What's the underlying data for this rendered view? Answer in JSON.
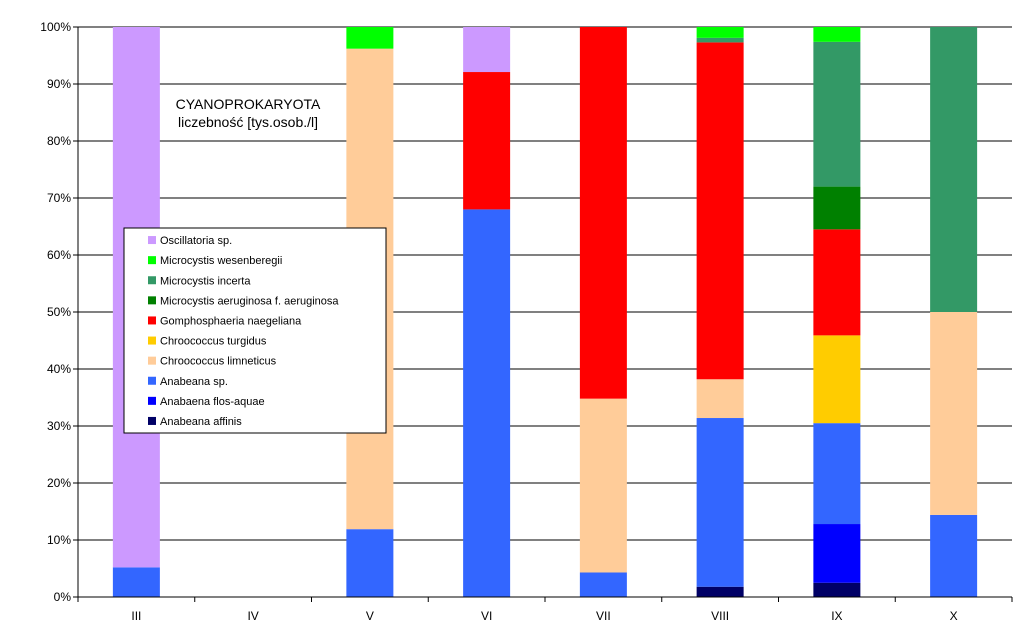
{
  "chart_data": {
    "type": "bar",
    "stacked": true,
    "percent": true,
    "title": "CYANOPROKARYOTA",
    "subtitle": "liczebność [tys.osob./l]",
    "categories": [
      "III",
      "IV",
      "V",
      "VI",
      "VII",
      "VIII",
      "IX",
      "X"
    ],
    "ylim": [
      0,
      100
    ],
    "yticks": [
      "0%",
      "10%",
      "20%",
      "30%",
      "40%",
      "50%",
      "60%",
      "70%",
      "80%",
      "90%",
      "100%"
    ],
    "grid": "horizontal",
    "legend_placement": "left-middle",
    "series": [
      {
        "name": "Anabeana affinis",
        "color": "#000066",
        "values": [
          0,
          0,
          0,
          0,
          0,
          1.8,
          2.5,
          0
        ]
      },
      {
        "name": "Anabaena flos-aquae",
        "color": "#0000FF",
        "values": [
          0,
          0,
          0,
          0,
          0,
          0,
          10.3,
          0
        ]
      },
      {
        "name": "Anabeana sp.",
        "color": "#3366FF",
        "values": [
          5.2,
          0,
          11.9,
          68,
          4.3,
          29.6,
          17.7,
          14.4
        ]
      },
      {
        "name": "Chroococcus limneticus",
        "color": "#FFCC99",
        "values": [
          0,
          0,
          84.3,
          0,
          30.5,
          6.8,
          0,
          35.6
        ]
      },
      {
        "name": "Chroococcus turgidus",
        "color": "#FFCC00",
        "values": [
          0,
          0,
          0,
          0,
          0,
          0,
          15.4,
          0
        ]
      },
      {
        "name": "Gomphosphaeria naegeliana",
        "color": "#FF0000",
        "values": [
          0,
          0,
          0,
          24.1,
          65.2,
          59.1,
          18.6,
          0
        ]
      },
      {
        "name": "Microcystis aeruginosa f. aeruginosa",
        "color": "#008000",
        "values": [
          0,
          0,
          0,
          0,
          0,
          0,
          7.5,
          0
        ]
      },
      {
        "name": "Microcystis incerta",
        "color": "#339966",
        "values": [
          0,
          0,
          0,
          0,
          0,
          0.8,
          25.4,
          50
        ]
      },
      {
        "name": "Microcystis wesenberegii",
        "color": "#00FF00",
        "values": [
          0,
          0,
          3.8,
          0,
          0,
          1.9,
          2.6,
          0
        ]
      },
      {
        "name": "Oscillatoria sp.",
        "color": "#CC99FF",
        "values": [
          94.8,
          0,
          0,
          7.9,
          0,
          0,
          0,
          0
        ]
      }
    ]
  }
}
